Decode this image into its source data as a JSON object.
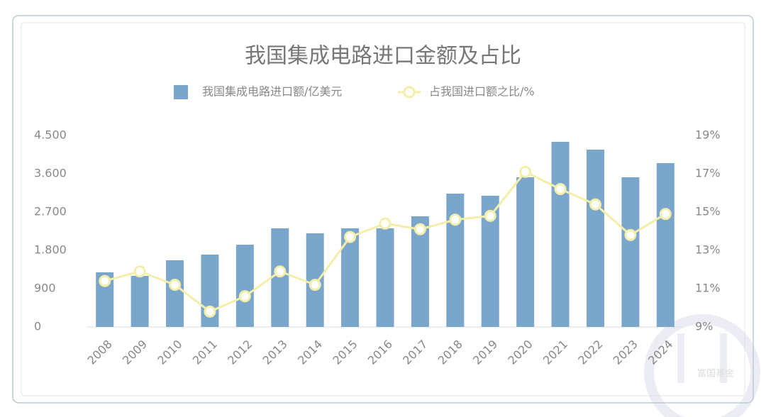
{
  "chart_data": {
    "type": "bar_line",
    "title": "我国集成电路进口金额及占比",
    "categories": [
      "2008",
      "2009",
      "2010",
      "2011",
      "2012",
      "2013",
      "2014",
      "2015",
      "2016",
      "2017",
      "2018",
      "2019",
      "2020",
      "2021",
      "2022",
      "2023",
      "2024"
    ],
    "series": [
      {
        "name": "我国集成电路进口额/亿美元",
        "type": "bar",
        "color": "#7ba6cc",
        "values": [
          1283,
          1200,
          1567,
          1700,
          1933,
          2317,
          2200,
          2317,
          2317,
          2600,
          3133,
          3083,
          3517,
          4350,
          4167,
          3517,
          3850
        ]
      },
      {
        "name": "占我国进口额之比/%",
        "type": "line",
        "axis": "y2",
        "color": "#f3eeaa",
        "values": [
          11.4,
          11.9,
          11.2,
          9.8,
          10.6,
          11.9,
          11.2,
          13.7,
          14.4,
          14.1,
          14.6,
          14.8,
          17.1,
          16.2,
          15.4,
          13.8,
          14.9
        ]
      }
    ],
    "ylim": [
      0,
      4500
    ],
    "yticks": [
      0,
      900,
      {
        "value": 1800,
        "label": "1.800"
      },
      {
        "value": 2700,
        "label": "2.700"
      },
      {
        "value": 3600,
        "label": "3.600"
      },
      {
        "value": 4500,
        "label": "4.500"
      }
    ],
    "y2lim": [
      9,
      19
    ],
    "y2ticks": [
      {
        "value": 9,
        "label": "9%"
      },
      {
        "value": 11,
        "label": "11%"
      },
      {
        "value": 13,
        "label": "13%"
      },
      {
        "value": 15,
        "label": "15%"
      },
      {
        "value": 17,
        "label": "17%"
      },
      {
        "value": 19,
        "label": "19%"
      }
    ],
    "watermark": "富国基金"
  }
}
